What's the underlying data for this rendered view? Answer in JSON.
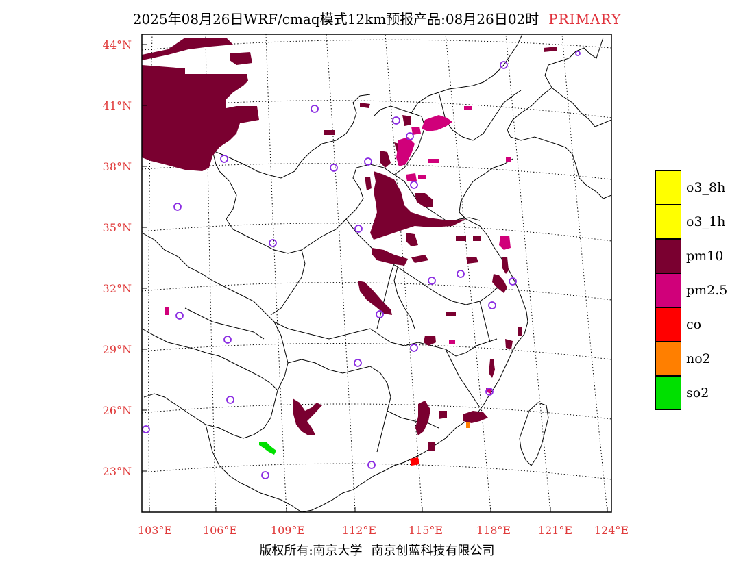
{
  "title": {
    "text": "2025年08月26日WRF/cmaq模式12km预报产品:08月26日02时",
    "mode": "PRIMARY"
  },
  "map": {
    "lon_range": [
      102.5,
      124
    ],
    "lat_range": [
      21.3,
      44.6
    ],
    "lat_labels": [
      "44°N",
      "41°N",
      "38°N",
      "35°N",
      "32°N",
      "29°N",
      "26°N",
      "23°N"
    ],
    "lon_labels": [
      "103°E",
      "106°E",
      "109°E",
      "112°E",
      "115°E",
      "118°E",
      "121°E",
      "124°E"
    ]
  },
  "legend": [
    {
      "label": "o3_8h",
      "color": "#ffff00"
    },
    {
      "label": "o3_1h",
      "color": "#ffff00"
    },
    {
      "label": "pm10",
      "color": "#7a0030"
    },
    {
      "label": "pm2.5",
      "color": "#d0007a"
    },
    {
      "label": "co",
      "color": "#ff0000"
    },
    {
      "label": "no2",
      "color": "#ff7f00"
    },
    {
      "label": "so2",
      "color": "#00e000"
    }
  ],
  "colors": {
    "pm10": "#7a0030",
    "pm25": "#d0007a",
    "co": "#ff0000",
    "no2": "#ff7f00",
    "so2": "#00e000",
    "station": "#8a2be2",
    "axis_label": "#e03a3a"
  },
  "footer": {
    "left": "版权所有:南京大学",
    "right": "南京创蓝科技有限公司"
  }
}
